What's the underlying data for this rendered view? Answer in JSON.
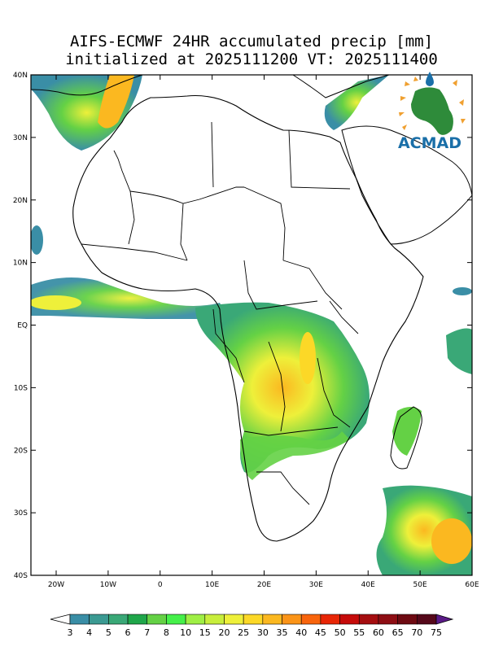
{
  "title": {
    "line1": "AIFS-ECMWF 24HR accumulated precip [mm]",
    "line2": "initialized at 2025111200 VT: 2025111400"
  },
  "logo": {
    "text": "ACMAD"
  },
  "axes": {
    "lat_labels": [
      "40N",
      "30N",
      "20N",
      "10N",
      "EQ",
      "10S",
      "20S",
      "30S",
      "40S"
    ],
    "lon_labels": [
      "20W",
      "10W",
      "0",
      "10E",
      "20E",
      "30E",
      "40E",
      "50E",
      "60E"
    ]
  },
  "colorbar": {
    "labels": [
      "3",
      "4",
      "5",
      "6",
      "7",
      "8",
      "10",
      "15",
      "20",
      "25",
      "30",
      "35",
      "40",
      "45",
      "50",
      "55",
      "60",
      "65",
      "70",
      "75"
    ],
    "colors": [
      "#3a8ea6",
      "#3b9a92",
      "#3aa877",
      "#1fa64a",
      "#64d145",
      "#45f04a",
      "#9fef45",
      "#c8ee3c",
      "#eef03a",
      "#fcd827",
      "#fbb820",
      "#fb9418",
      "#f8640c",
      "#e82606",
      "#c60b0a",
      "#a50e10",
      "#8e0e14",
      "#6e0a12",
      "#55081a",
      "#5a1a86"
    ]
  }
}
